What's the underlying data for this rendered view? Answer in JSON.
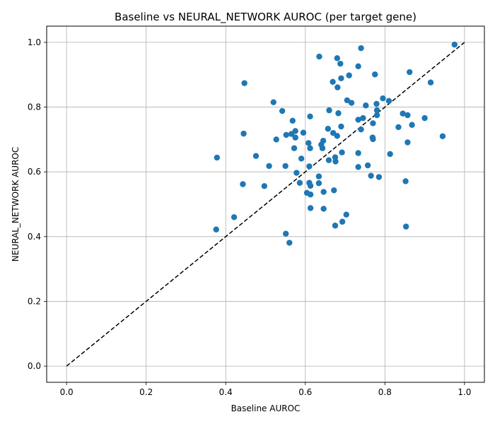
{
  "chart_data": {
    "type": "scatter",
    "title": "Baseline vs NEURAL_NETWORK AUROC (per target gene)",
    "xlabel": "Baseline AUROC",
    "ylabel": "NEURAL_NETWORK AUROC",
    "xlim": [
      -0.05,
      1.05
    ],
    "ylim": [
      -0.05,
      1.05
    ],
    "xticks": [
      0.0,
      0.2,
      0.4,
      0.6,
      0.8,
      1.0
    ],
    "yticks": [
      0.0,
      0.2,
      0.4,
      0.6,
      0.8,
      1.0
    ],
    "xtick_labels": [
      "0.0",
      "0.2",
      "0.4",
      "0.6",
      "0.8",
      "1.0"
    ],
    "ytick_labels": [
      "0.0",
      "0.2",
      "0.4",
      "0.6",
      "0.8",
      "1.0"
    ],
    "grid": true,
    "point_color": "#1f77b4",
    "reference_line": {
      "x": [
        0,
        1
      ],
      "y": [
        0,
        1
      ],
      "style": "dashed",
      "color": "#000000"
    },
    "points": [
      [
        0.975,
        0.993
      ],
      [
        0.74,
        0.982
      ],
      [
        0.635,
        0.956
      ],
      [
        0.68,
        0.951
      ],
      [
        0.688,
        0.934
      ],
      [
        0.733,
        0.926
      ],
      [
        0.862,
        0.908
      ],
      [
        0.775,
        0.901
      ],
      [
        0.71,
        0.898
      ],
      [
        0.69,
        0.889
      ],
      [
        0.669,
        0.878
      ],
      [
        0.915,
        0.876
      ],
      [
        0.447,
        0.874
      ],
      [
        0.681,
        0.861
      ],
      [
        0.795,
        0.827
      ],
      [
        0.705,
        0.821
      ],
      [
        0.81,
        0.819
      ],
      [
        0.52,
        0.815
      ],
      [
        0.716,
        0.813
      ],
      [
        0.779,
        0.81
      ],
      [
        0.752,
        0.805
      ],
      [
        0.542,
        0.788
      ],
      [
        0.66,
        0.79
      ],
      [
        0.78,
        0.79
      ],
      [
        0.683,
        0.781
      ],
      [
        0.845,
        0.78
      ],
      [
        0.857,
        0.775
      ],
      [
        0.78,
        0.775
      ],
      [
        0.612,
        0.771
      ],
      [
        0.9,
        0.766
      ],
      [
        0.745,
        0.766
      ],
      [
        0.733,
        0.761
      ],
      [
        0.568,
        0.758
      ],
      [
        0.77,
        0.75
      ],
      [
        0.868,
        0.745
      ],
      [
        0.69,
        0.74
      ],
      [
        0.834,
        0.738
      ],
      [
        0.657,
        0.733
      ],
      [
        0.74,
        0.731
      ],
      [
        0.575,
        0.726
      ],
      [
        0.595,
        0.721
      ],
      [
        0.67,
        0.72
      ],
      [
        0.445,
        0.718
      ],
      [
        0.565,
        0.717
      ],
      [
        0.552,
        0.714
      ],
      [
        0.68,
        0.711
      ],
      [
        0.945,
        0.71
      ],
      [
        0.575,
        0.706
      ],
      [
        0.769,
        0.706
      ],
      [
        0.77,
        0.701
      ],
      [
        0.527,
        0.7
      ],
      [
        0.645,
        0.696
      ],
      [
        0.857,
        0.691
      ],
      [
        0.608,
        0.689
      ],
      [
        0.64,
        0.684
      ],
      [
        0.612,
        0.673
      ],
      [
        0.643,
        0.673
      ],
      [
        0.572,
        0.673
      ],
      [
        0.692,
        0.66
      ],
      [
        0.733,
        0.658
      ],
      [
        0.813,
        0.655
      ],
      [
        0.476,
        0.649
      ],
      [
        0.675,
        0.645
      ],
      [
        0.378,
        0.644
      ],
      [
        0.59,
        0.641
      ],
      [
        0.659,
        0.636
      ],
      [
        0.676,
        0.632
      ],
      [
        0.757,
        0.62
      ],
      [
        0.509,
        0.618
      ],
      [
        0.55,
        0.618
      ],
      [
        0.61,
        0.617
      ],
      [
        0.733,
        0.615
      ],
      [
        0.578,
        0.597
      ],
      [
        0.765,
        0.588
      ],
      [
        0.634,
        0.586
      ],
      [
        0.785,
        0.584
      ],
      [
        0.852,
        0.571
      ],
      [
        0.443,
        0.562
      ],
      [
        0.586,
        0.566
      ],
      [
        0.61,
        0.566
      ],
      [
        0.634,
        0.565
      ],
      [
        0.613,
        0.557
      ],
      [
        0.497,
        0.556
      ],
      [
        0.672,
        0.543
      ],
      [
        0.646,
        0.538
      ],
      [
        0.604,
        0.535
      ],
      [
        0.613,
        0.53
      ],
      [
        0.613,
        0.488
      ],
      [
        0.646,
        0.486
      ],
      [
        0.703,
        0.468
      ],
      [
        0.421,
        0.46
      ],
      [
        0.693,
        0.446
      ],
      [
        0.675,
        0.434
      ],
      [
        0.853,
        0.431
      ],
      [
        0.376,
        0.422
      ],
      [
        0.551,
        0.409
      ],
      [
        0.56,
        0.381
      ]
    ]
  }
}
